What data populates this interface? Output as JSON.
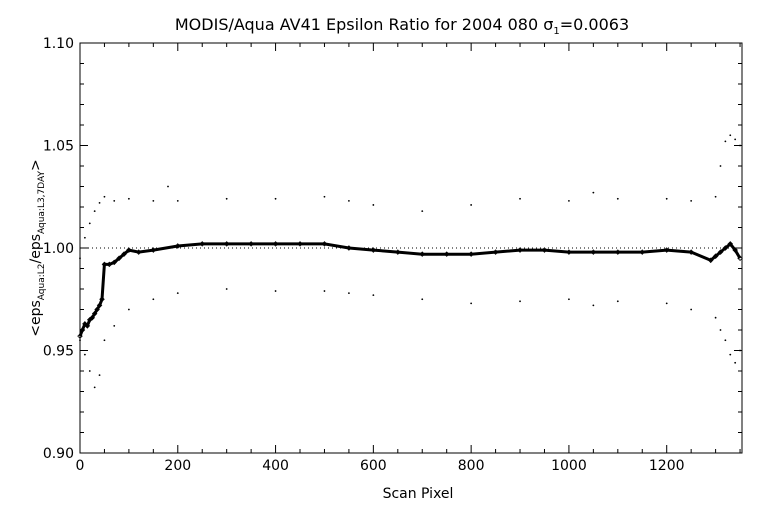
{
  "chart_data": {
    "type": "scatter",
    "title_main": "MODIS/Aqua AV41 Epsilon Ratio for 2004 080 ",
    "title_sigma": "σ",
    "title_sigma_sub": "1",
    "title_sigma_value": "=0.0063",
    "xlabel": "Scan Pixel",
    "ylabel_parts": [
      "<eps",
      "Aqua:L2",
      "/eps",
      "Aqua:L3,7DAY",
      ">"
    ],
    "xlim": [
      0,
      1354
    ],
    "ylim": [
      0.9,
      1.1
    ],
    "x_ticks": [
      0,
      200,
      400,
      600,
      800,
      1000,
      1200
    ],
    "x_tick_labels": [
      "0",
      "200",
      "400",
      "600",
      "800",
      "1000",
      "1200"
    ],
    "y_ticks": [
      0.9,
      0.95,
      1.0,
      1.05,
      1.1
    ],
    "y_tick_labels": [
      "0.90",
      "0.95",
      "1.00",
      "1.05",
      "1.10"
    ],
    "reference_line": 1.0,
    "series": [
      {
        "role": "mean",
        "marker": "diamond",
        "x": [
          0,
          5,
          10,
          15,
          20,
          25,
          30,
          35,
          40,
          45,
          50,
          60,
          70,
          80,
          90,
          100,
          120,
          150,
          200,
          250,
          300,
          350,
          400,
          450,
          500,
          550,
          600,
          650,
          700,
          750,
          800,
          850,
          900,
          950,
          1000,
          1050,
          1100,
          1150,
          1200,
          1250,
          1290,
          1300,
          1310,
          1320,
          1330,
          1340,
          1350
        ],
        "y": [
          0.957,
          0.96,
          0.963,
          0.962,
          0.965,
          0.966,
          0.968,
          0.97,
          0.972,
          0.975,
          0.992,
          0.992,
          0.993,
          0.995,
          0.997,
          0.999,
          0.998,
          0.999,
          1.001,
          1.002,
          1.002,
          1.002,
          1.002,
          1.002,
          1.002,
          1.0,
          0.999,
          0.998,
          0.997,
          0.997,
          0.997,
          0.998,
          0.999,
          0.999,
          0.998,
          0.998,
          0.998,
          0.998,
          0.999,
          0.998,
          0.994,
          0.996,
          0.998,
          1.0,
          1.002,
          0.999,
          0.995
        ]
      },
      {
        "role": "upper",
        "marker": "dot",
        "x": [
          0,
          10,
          20,
          30,
          40,
          50,
          70,
          100,
          150,
          180,
          200,
          300,
          400,
          500,
          550,
          600,
          700,
          800,
          900,
          1000,
          1050,
          1100,
          1200,
          1250,
          1300,
          1310,
          1320,
          1330,
          1340,
          1350
        ],
        "y": [
          0.995,
          1.005,
          1.012,
          1.018,
          1.022,
          1.025,
          1.023,
          1.024,
          1.023,
          1.03,
          1.023,
          1.024,
          1.024,
          1.025,
          1.023,
          1.021,
          1.018,
          1.021,
          1.024,
          1.023,
          1.027,
          1.024,
          1.024,
          1.023,
          1.025,
          1.04,
          1.052,
          1.055,
          1.053,
          1.05
        ]
      },
      {
        "role": "lower",
        "marker": "dot",
        "x": [
          0,
          10,
          20,
          30,
          40,
          50,
          70,
          100,
          150,
          200,
          300,
          400,
          500,
          550,
          600,
          700,
          800,
          900,
          1000,
          1050,
          1100,
          1200,
          1250,
          1300,
          1310,
          1320,
          1330,
          1340,
          1350
        ],
        "y": [
          0.955,
          0.948,
          0.94,
          0.932,
          0.938,
          0.955,
          0.962,
          0.97,
          0.975,
          0.978,
          0.98,
          0.979,
          0.979,
          0.978,
          0.977,
          0.975,
          0.973,
          0.974,
          0.975,
          0.972,
          0.974,
          0.973,
          0.97,
          0.966,
          0.96,
          0.955,
          0.948,
          0.944,
          0.95
        ]
      }
    ]
  }
}
